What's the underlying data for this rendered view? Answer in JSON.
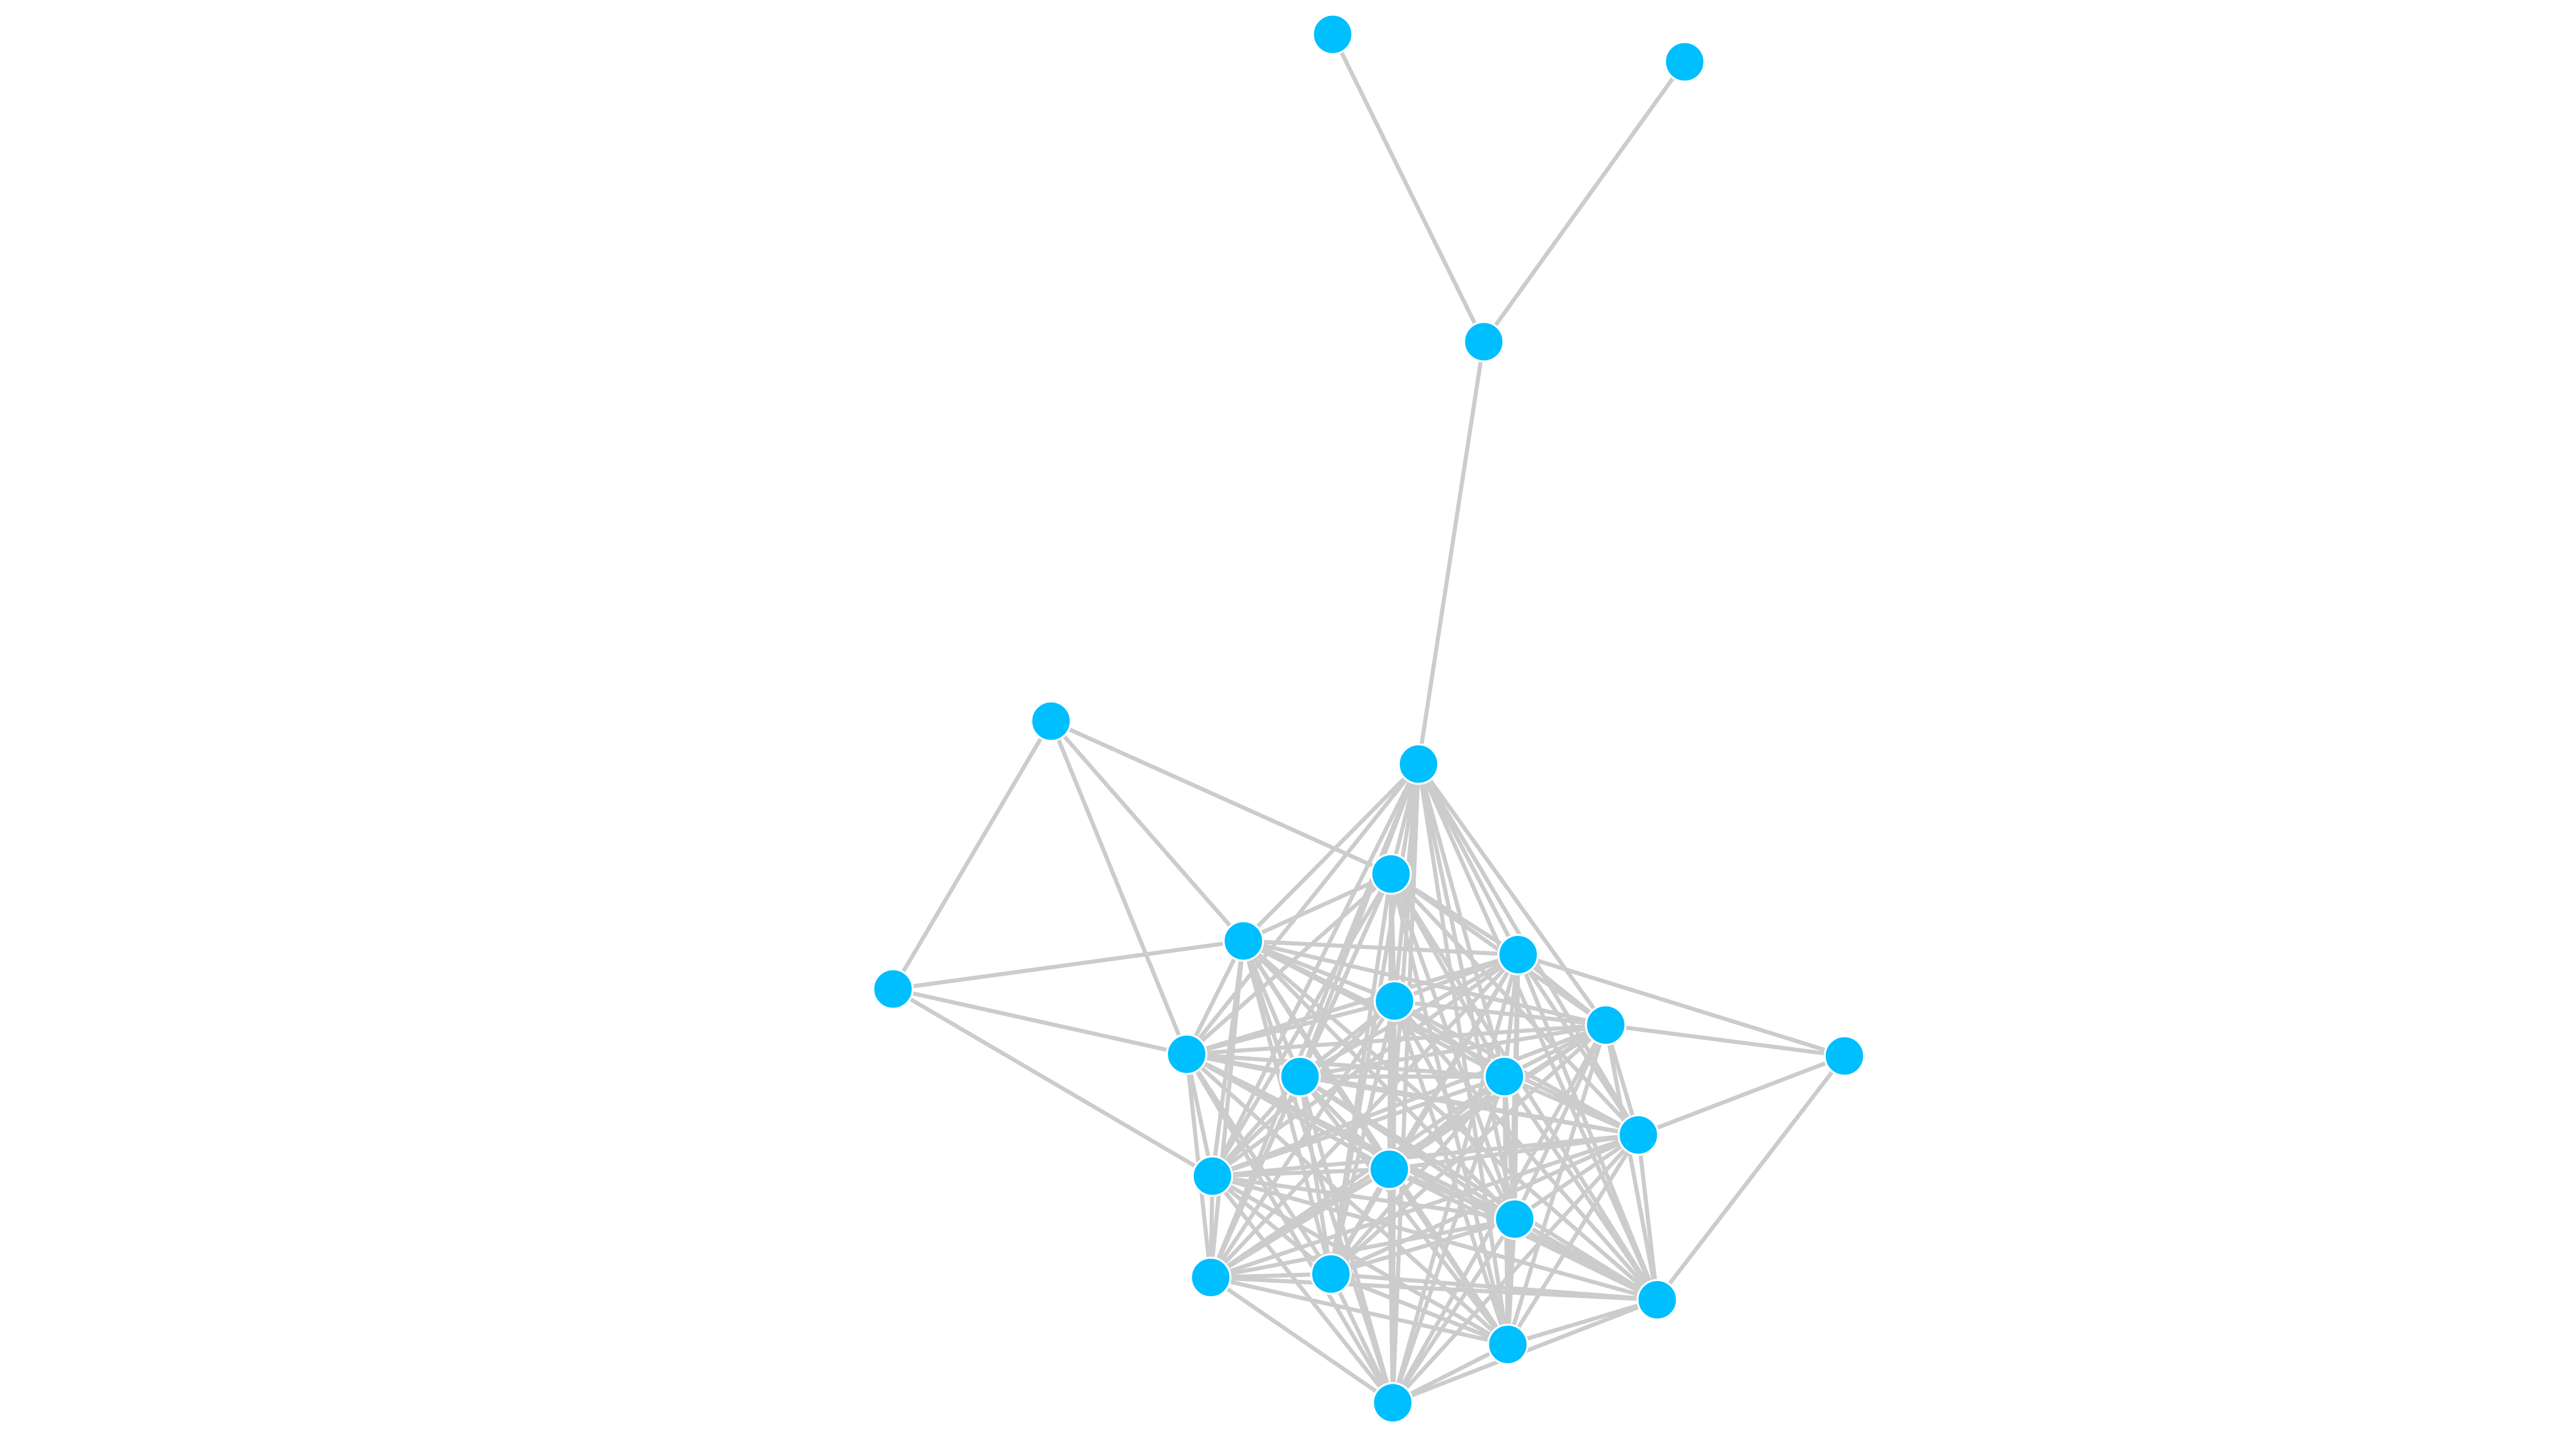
{
  "graph": {
    "node_color": "#00BFFF",
    "edge_color": "#CCCCCC",
    "background": "#FFFFFF",
    "nodes": [
      "n0",
      "n1",
      "n2",
      "n3",
      "n4",
      "n5",
      "n6",
      "n7",
      "n8",
      "n9",
      "n10",
      "n11",
      "n12",
      "n13",
      "n14",
      "n15",
      "n16",
      "n17",
      "n18",
      "n19",
      "n20",
      "n21",
      "n22",
      "n23"
    ],
    "edges": [
      [
        "n0",
        "n2"
      ],
      [
        "n1",
        "n2"
      ],
      [
        "n2",
        "n3"
      ],
      [
        "n4",
        "n7"
      ],
      [
        "n4",
        "n6"
      ],
      [
        "n4",
        "n12"
      ],
      [
        "n4",
        "n5"
      ],
      [
        "n7",
        "n6"
      ],
      [
        "n7",
        "n12"
      ],
      [
        "n7",
        "n16"
      ],
      [
        "n11",
        "n8"
      ],
      [
        "n11",
        "n10"
      ],
      [
        "n11",
        "n15"
      ],
      [
        "n11",
        "n21"
      ]
    ],
    "cliques": [
      [
        "n3",
        "n5",
        "n6",
        "n8",
        "n9",
        "n10",
        "n12",
        "n13",
        "n14",
        "n15",
        "n16",
        "n17",
        "n18",
        "n19",
        "n20",
        "n21",
        "n22",
        "n23"
      ]
    ]
  }
}
